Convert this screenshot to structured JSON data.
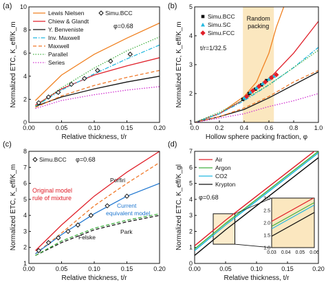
{
  "chart_data": [
    {
      "panel": "(a)",
      "type": "line",
      "xlabel": "Relative thickness, t/r",
      "ylabel": "Normalized ETC, K_eff/K_m",
      "xlim": [
        0,
        0.2
      ],
      "ylim": [
        0,
        10
      ],
      "xticks": [
        "0.00",
        "0.05",
        "0.10",
        "0.15",
        "0.20"
      ],
      "yticks": [
        "0",
        "2",
        "4",
        "6",
        "8",
        "10"
      ],
      "annotation": "φ=0.68",
      "legend_position": "top-left",
      "series": [
        {
          "name": "Lewis Nielsen",
          "color": "#f08020",
          "dash": "solid",
          "x": [
            0.01,
            0.05,
            0.1,
            0.15,
            0.2
          ],
          "y": [
            1.9,
            4.1,
            5.9,
            7.3,
            8.6
          ]
        },
        {
          "name": "Chiew & Glandt",
          "color": "#e0202a",
          "dash": "solid",
          "x": [
            0.01,
            0.05,
            0.1,
            0.15,
            0.2
          ],
          "y": [
            1.5,
            2.9,
            4.1,
            4.9,
            5.6
          ]
        },
        {
          "name": "Y. Benveniste",
          "color": "#111111",
          "dash": "solid",
          "x": [
            0.01,
            0.05,
            0.1,
            0.15,
            0.2
          ],
          "y": [
            1.4,
            2.2,
            2.9,
            3.5,
            4.0
          ]
        },
        {
          "name": "Inv. Maxwell",
          "color": "#22b8e0",
          "dash": "dashdot",
          "x": [
            0.01,
            0.05,
            0.1,
            0.15,
            0.2
          ],
          "y": [
            1.4,
            2.8,
            4.2,
            5.5,
            6.7
          ]
        },
        {
          "name": "Maxwell",
          "color": "#f07828",
          "dash": "dash",
          "x": [
            0.01,
            0.05,
            0.1,
            0.15,
            0.2
          ],
          "y": [
            1.3,
            2.3,
            3.2,
            3.9,
            4.5
          ]
        },
        {
          "name": "Parallel",
          "color": "#40b040",
          "dash": "dot",
          "x": [
            0.01,
            0.05,
            0.1,
            0.15,
            0.2
          ],
          "y": [
            1.4,
            3.0,
            4.7,
            6.2,
            7.4
          ]
        },
        {
          "name": "Series",
          "color": "#d030d0",
          "dash": "dot",
          "x": [
            0.01,
            0.05,
            0.1,
            0.15,
            0.2
          ],
          "y": [
            1.2,
            1.9,
            2.4,
            2.8,
            3.1
          ]
        }
      ],
      "markers": {
        "name": "Simu.BCC",
        "symbol": "diamond",
        "x": [
          0.015,
          0.03,
          0.045,
          0.065,
          0.085,
          0.105,
          0.125,
          0.155
        ],
        "y": [
          1.7,
          2.2,
          2.6,
          3.3,
          3.8,
          4.5,
          5.3,
          5.9
        ]
      }
    },
    {
      "panel": "(b)",
      "type": "line",
      "xlabel": "Hollow sphere packing fraction, φ",
      "ylabel": "Normalized ETC, K_eff/K_m",
      "xlim": [
        0,
        1.0
      ],
      "ylim": [
        1,
        5
      ],
      "xticks": [
        "0.0",
        "0.2",
        "0.4",
        "0.6",
        "0.8",
        "1.0"
      ],
      "yticks": [
        "1",
        "2",
        "3",
        "4",
        "5"
      ],
      "annotations": [
        "Random packing",
        "t/r=1/32.5"
      ],
      "shaded_region": [
        0.39,
        0.64
      ],
      "series": [
        {
          "name": "Lewis Nielsen",
          "color": "#f08020",
          "dash": "solid",
          "x": [
            0,
            0.2,
            0.4,
            0.5,
            0.6,
            0.66,
            0.72
          ],
          "y": [
            1.0,
            1.3,
            1.9,
            2.4,
            3.4,
            4.3,
            5.0
          ]
        },
        {
          "name": "Chiew & Glandt",
          "color": "#e0202a",
          "dash": "solid",
          "x": [
            0,
            0.2,
            0.4,
            0.6,
            0.8,
            1.0
          ],
          "y": [
            1.0,
            1.3,
            1.8,
            2.5,
            3.4,
            4.5
          ]
        },
        {
          "name": "Y. Benveniste",
          "color": "#111111",
          "dash": "solid",
          "x": [
            0,
            0.2,
            0.4,
            0.6,
            0.8,
            1.0
          ],
          "y": [
            1.0,
            1.2,
            1.45,
            1.85,
            2.3,
            2.75
          ]
        },
        {
          "name": "Inv. Maxwell",
          "color": "#22b8e0",
          "dash": "dashdot",
          "x": [
            0,
            0.2,
            0.4,
            0.6,
            0.8,
            1.0
          ],
          "y": [
            1.0,
            1.3,
            1.75,
            2.3,
            2.9,
            3.6
          ]
        },
        {
          "name": "Maxwell",
          "color": "#f07828",
          "dash": "dash",
          "x": [
            0,
            0.2,
            0.4,
            0.6,
            0.8,
            1.0
          ],
          "y": [
            1.0,
            1.2,
            1.5,
            1.9,
            2.4,
            2.8
          ]
        },
        {
          "name": "Parallel",
          "color": "#40b040",
          "dash": "dot",
          "x": [
            0,
            0.2,
            0.4,
            0.6,
            0.8,
            1.0
          ],
          "y": [
            1.0,
            1.35,
            1.8,
            2.3,
            2.9,
            3.5
          ]
        },
        {
          "name": "Series",
          "color": "#d030d0",
          "dash": "dot",
          "x": [
            0,
            0.2,
            0.4,
            0.6,
            0.8,
            1.0
          ],
          "y": [
            1.0,
            1.15,
            1.3,
            1.55,
            1.75,
            2.0
          ]
        }
      ],
      "markers": [
        {
          "name": "Simu.BCC",
          "symbol": "square",
          "color": "#111111",
          "x": [
            0.39,
            0.44,
            0.49,
            0.54,
            0.58,
            0.62
          ],
          "y": [
            1.8,
            2.0,
            2.15,
            2.3,
            2.45,
            2.55
          ]
        },
        {
          "name": "Simu.SC",
          "symbol": "triangle",
          "color": "#22b8e0",
          "x": [
            0.4,
            0.45,
            0.5,
            0.55,
            0.6,
            0.64
          ],
          "y": [
            1.85,
            2.05,
            2.2,
            2.35,
            2.5,
            2.6
          ]
        },
        {
          "name": "Simu.FCC",
          "symbol": "diamond",
          "color": "#e0202a",
          "x": [
            0.42,
            0.47,
            0.52,
            0.57,
            0.62,
            0.66
          ],
          "y": [
            1.9,
            2.1,
            2.25,
            2.4,
            2.55,
            2.65
          ]
        }
      ]
    },
    {
      "panel": "(c)",
      "type": "line",
      "xlabel": "Relative thickness, t/r",
      "ylabel": "Normalized ETC, K_eff/K_m",
      "xlim": [
        0,
        0.2
      ],
      "ylim": [
        1,
        8
      ],
      "xticks": [
        "0.00",
        "0.05",
        "0.10",
        "0.15",
        "0.20"
      ],
      "yticks": [
        "1",
        "2",
        "3",
        "4",
        "5",
        "6",
        "7",
        "8"
      ],
      "annotation": "φ=0.68",
      "labels": [
        "Original model rule of mixture",
        "Porfiri",
        "Current equivalent model",
        "Felske",
        "Park"
      ],
      "series": [
        {
          "name": "Original model rule of mixture",
          "color": "#e0202a",
          "dash": "solid",
          "x": [
            0.01,
            0.05,
            0.1,
            0.15,
            0.2
          ],
          "y": [
            1.8,
            3.4,
            5.2,
            6.7,
            8.0
          ]
        },
        {
          "name": "Porfiri",
          "color": "#f07828",
          "dash": "dash",
          "x": [
            0.01,
            0.05,
            0.1,
            0.15,
            0.2
          ],
          "y": [
            1.6,
            2.9,
            4.6,
            6.0,
            7.3
          ]
        },
        {
          "name": "Current equivalent model",
          "color": "#1f77d0",
          "dash": "solid",
          "x": [
            0.01,
            0.05,
            0.1,
            0.15,
            0.2
          ],
          "y": [
            1.6,
            2.8,
            4.1,
            5.2,
            6.0
          ]
        },
        {
          "name": "Felske",
          "color": "#111111",
          "dash": "dash",
          "x": [
            0.01,
            0.05,
            0.1,
            0.15,
            0.2
          ],
          "y": [
            1.5,
            2.3,
            3.1,
            3.6,
            4.0
          ]
        },
        {
          "name": "Park",
          "color": "#40b040",
          "dash": "dash",
          "x": [
            0.01,
            0.05,
            0.1,
            0.15,
            0.2
          ],
          "y": [
            1.5,
            2.4,
            3.2,
            3.7,
            4.1
          ]
        }
      ],
      "markers": {
        "name": "Simu.BCC",
        "symbol": "diamond",
        "x": [
          0.015,
          0.03,
          0.045,
          0.06,
          0.075,
          0.095,
          0.12,
          0.15
        ],
        "y": [
          1.8,
          2.3,
          2.6,
          3.0,
          3.4,
          4.0,
          4.6,
          5.2
        ]
      }
    },
    {
      "panel": "(d)",
      "type": "line",
      "xlabel": "Relative thickness, t/r",
      "ylabel": "Normalized ETC, K_eff/K_gl",
      "xlim": [
        0,
        0.2
      ],
      "ylim": [
        0,
        7
      ],
      "xticks": [
        "0.00",
        "0.05",
        "0.10",
        "0.15",
        "0.20"
      ],
      "yticks": [
        "0",
        "1",
        "2",
        "3",
        "4",
        "5",
        "6",
        "7"
      ],
      "annotation": "φ=0.68",
      "legend_position": "top-left",
      "series": [
        {
          "name": "Air",
          "color": "#e0202a",
          "dash": "solid",
          "x": [
            0,
            0.05,
            0.1,
            0.15,
            0.2
          ],
          "y": [
            1.1,
            2.7,
            4.2,
            5.7,
            7.2
          ]
        },
        {
          "name": "Argon",
          "color": "#40b040",
          "dash": "solid",
          "x": [
            0,
            0.05,
            0.1,
            0.15,
            0.2
          ],
          "y": [
            0.9,
            2.5,
            4.0,
            5.5,
            7.0
          ]
        },
        {
          "name": "CO2",
          "color": "#22b8e0",
          "dash": "solid",
          "x": [
            0,
            0.05,
            0.1,
            0.15,
            0.2
          ],
          "y": [
            0.8,
            2.4,
            3.9,
            5.4,
            6.9
          ]
        },
        {
          "name": "Krypton",
          "color": "#111111",
          "dash": "solid",
          "x": [
            0,
            0.05,
            0.1,
            0.15,
            0.2
          ],
          "y": [
            0.5,
            2.1,
            3.6,
            5.1,
            6.6
          ]
        }
      ],
      "inset": {
        "xlim": [
          0.03,
          0.06
        ],
        "ylim": [
          1.0,
          3.0
        ],
        "xticks": [
          "0.03",
          "0.04",
          "0.05",
          "0.06"
        ],
        "yticks": [
          "1.0",
          "1.5",
          "2.0",
          "2.5",
          "3.0"
        ],
        "zoom_box": {
          "x": [
            0.03,
            0.065
          ],
          "y": [
            1.2,
            3.1
          ]
        }
      }
    }
  ]
}
